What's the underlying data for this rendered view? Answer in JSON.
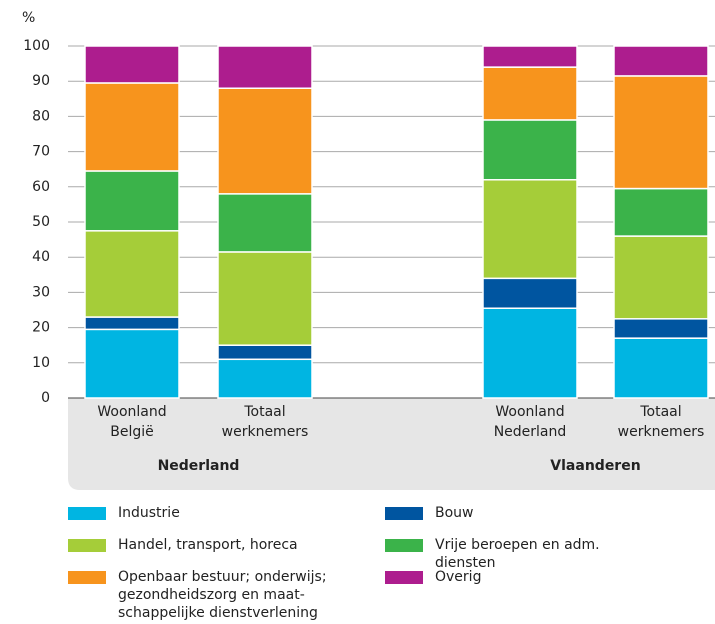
{
  "chart_data": {
    "type": "stacked_bar",
    "y_label": "%",
    "groups": [
      {
        "name": "Nederland",
        "categories": [
          "Woonland België",
          "Totaal werknemers"
        ]
      },
      {
        "name": "Vlaanderen",
        "categories": [
          "Woonland Nederland",
          "Totaal werknemers"
        ]
      }
    ],
    "series": [
      {
        "name": "Industrie",
        "color": "#00b5e2",
        "values": [
          19.5,
          11,
          25.5,
          17
        ]
      },
      {
        "name": "Bouw",
        "color": "#0055a0",
        "values": [
          3.5,
          4,
          8.5,
          5.5
        ]
      },
      {
        "name": "Handel, transport, horeca",
        "color": "#a5cd39",
        "values": [
          24.5,
          26.5,
          28,
          23.5
        ]
      },
      {
        "name": "Vrije beroepen en adm. diensten",
        "color": "#3bb34a",
        "values": [
          17,
          16.5,
          17,
          13.5
        ]
      },
      {
        "name": "Openbaar bestuur;  onderwijs; gezondheidszorg en maat-schappelijke dienstverlening",
        "color": "#f7941d",
        "values": [
          25,
          30,
          15,
          32
        ]
      },
      {
        "name": "Overig",
        "color": "#ad1d8e",
        "values": [
          10.5,
          12,
          6,
          8.5
        ]
      }
    ],
    "ylim": [
      0,
      100
    ],
    "yticks": [
      0,
      10,
      20,
      30,
      40,
      50,
      60,
      70,
      80,
      90,
      100
    ],
    "grid": true
  }
}
